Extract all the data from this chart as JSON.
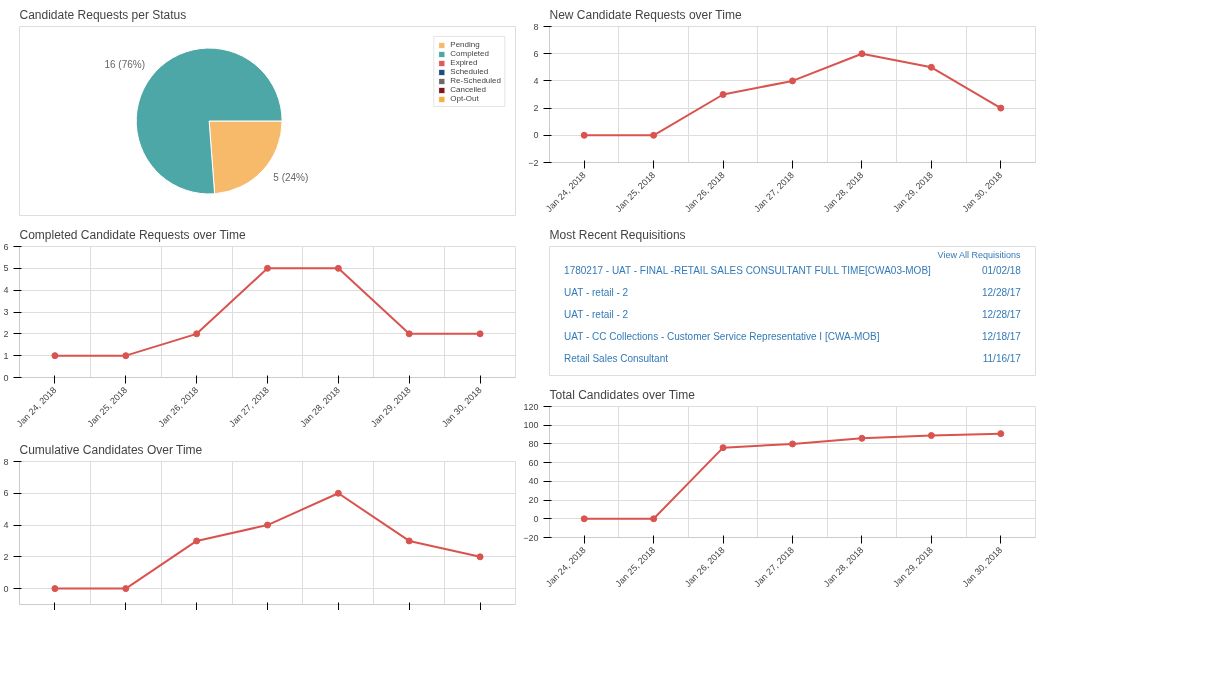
{
  "chart_data": [
    {
      "type": "pie",
      "title": "Candidate Requests per Status",
      "categories": [
        "Pending",
        "Completed",
        "Expired",
        "Scheduled",
        "Re-Scheduled",
        "Cancelled",
        "Opt-Out"
      ],
      "values": [
        5,
        16,
        0,
        0,
        0,
        0,
        0
      ],
      "colors": [
        "#f7b96a",
        "#4ea7a7",
        "#e05a5a",
        "#1f4e79",
        "#6b6b6b",
        "#7b1a1a",
        "#f5b041"
      ],
      "value_labels": [
        "5 (24%)",
        "16 (76%)",
        null,
        null,
        null,
        null,
        null
      ],
      "legend": "top right"
    },
    {
      "type": "line",
      "title": "New Candidate Requests over Time",
      "categories": [
        "Jan 24, 2018",
        "Jan 25, 2018",
        "Jan 26, 2018",
        "Jan 27, 2018",
        "Jan 28, 2018",
        "Jan 29, 2018",
        "Jan 30, 2018"
      ],
      "series": [
        {
          "color": "#d9534f",
          "values": [
            0,
            0,
            3,
            4,
            6,
            5,
            2
          ]
        }
      ],
      "ylim": [
        -2,
        8
      ],
      "yticks": [
        -2,
        0,
        2,
        4,
        6,
        8
      ],
      "grid": true,
      "marker": "circle"
    },
    {
      "type": "line",
      "title": "Completed Candidate Requests over Time",
      "categories": [
        "Jan 24, 2018",
        "Jan 25, 2018",
        "Jan 26, 2018",
        "Jan 27, 2018",
        "Jan 28, 2018",
        "Jan 29, 2018",
        "Jan 30, 2018"
      ],
      "series": [
        {
          "color": "#d9534f",
          "values": [
            1,
            1,
            2,
            5,
            5,
            2,
            2
          ]
        }
      ],
      "ylim": [
        0,
        6
      ],
      "yticks": [
        0,
        1,
        2,
        3,
        4,
        5,
        6
      ],
      "grid": true,
      "marker": "circle"
    },
    {
      "type": "other",
      "title": "Most Recent Requisitions",
      "annotations": [
        "1780217 - UAT - FINAL -RETAIL SALES CONSULTANT FULL TIME[CWA03-MOB]",
        "01/02/18",
        "UAT - retail - 2",
        "12/28/17",
        "UAT - retail - 2",
        "12/28/17",
        "UAT - CC Collections - Customer Service Representative I [CWA-MOB]",
        "12/18/17",
        "Retail Sales Consultant",
        "11/16/17",
        "View All Requisitions"
      ]
    },
    {
      "type": "line",
      "title": "Cumulative Candidates Over Time",
      "categories": [
        null,
        null,
        null,
        null,
        null,
        null,
        null
      ],
      "series": [
        {
          "color": "#d9534f",
          "values": [
            0,
            0,
            3,
            4,
            6,
            3,
            2
          ]
        }
      ],
      "ylim": [
        -1,
        8
      ],
      "yticks": [
        0,
        2,
        4,
        6,
        8
      ],
      "grid": true,
      "marker": "circle"
    },
    {
      "type": "line",
      "title": "Total Candidates over Time",
      "categories": [
        "Jan 24, 2018",
        "Jan 25, 2018",
        "Jan 26, 2018",
        "Jan 27, 2018",
        "Jan 28, 2018",
        "Jan 29, 2018",
        "Jan 30, 2018"
      ],
      "series": [
        {
          "color": "#d9534f",
          "values": [
            0,
            0,
            76,
            80,
            86,
            89,
            91
          ]
        }
      ],
      "ylim": [
        -20,
        120
      ],
      "yticks": [
        -20,
        0,
        20,
        40,
        60,
        80,
        100,
        120
      ],
      "grid": true,
      "marker": "circle"
    }
  ]
}
